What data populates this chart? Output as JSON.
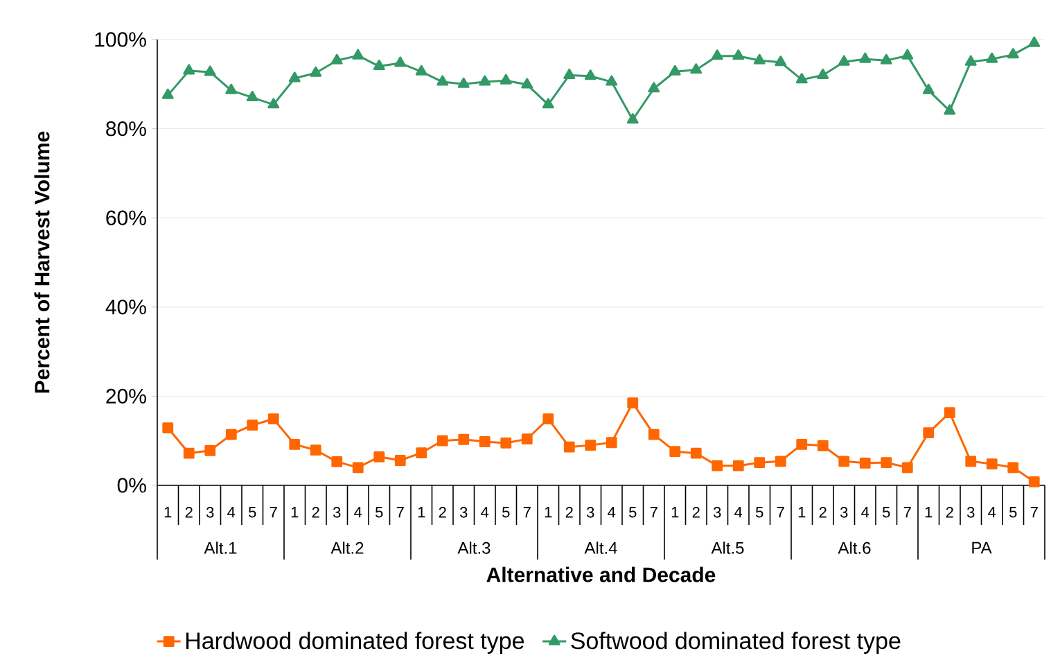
{
  "chart_data": {
    "type": "line",
    "xlabel": "Alternative and Decade",
    "ylabel": "Percent of Harvest Volume",
    "categories": [
      "1",
      "2",
      "3",
      "4",
      "5",
      "7",
      "1",
      "2",
      "3",
      "4",
      "5",
      "7",
      "1",
      "2",
      "3",
      "4",
      "5",
      "7",
      "1",
      "2",
      "3",
      "4",
      "5",
      "7",
      "1",
      "2",
      "3",
      "4",
      "5",
      "7",
      "1",
      "2",
      "3",
      "4",
      "5",
      "7",
      "1",
      "2",
      "3",
      "4",
      "5",
      "7"
    ],
    "annotations": [
      "Alt.1",
      "Alt.2",
      "Alt.3",
      "Alt.4",
      "Alt.5",
      "Alt.6",
      "PA"
    ],
    "series": [
      {
        "name": "Hardwood dominated forest type",
        "color": "#ff6600",
        "marker": "square",
        "values": [
          12.9,
          7.2,
          7.8,
          11.4,
          13.5,
          14.9,
          9.2,
          7.9,
          5.3,
          4.0,
          6.4,
          5.6,
          7.3,
          10.0,
          10.3,
          9.8,
          9.5,
          10.4,
          14.9,
          8.6,
          9.0,
          9.6,
          18.5,
          11.4,
          7.6,
          7.2,
          4.4,
          4.4,
          5.1,
          5.4,
          9.2,
          8.9,
          5.4,
          5.0,
          5.1,
          4.0,
          11.8,
          16.3,
          5.4,
          4.8,
          4.0,
          0.8
        ]
      },
      {
        "name": "Softwood dominated forest type",
        "color": "#339966",
        "marker": "triangle",
        "values": [
          87.5,
          93.0,
          92.7,
          88.6,
          87.0,
          85.4,
          91.3,
          92.5,
          95.3,
          96.4,
          94.0,
          94.7,
          92.8,
          90.5,
          90.0,
          90.5,
          90.8,
          89.9,
          85.4,
          92.0,
          91.8,
          90.5,
          82.0,
          89.0,
          92.8,
          93.2,
          96.3,
          96.3,
          95.3,
          94.9,
          91.0,
          92.0,
          95.0,
          95.6,
          95.3,
          96.4,
          88.6,
          84.0,
          95.0,
          95.6,
          96.6,
          99.2
        ]
      }
    ],
    "ylim": [
      0,
      100
    ],
    "yticks": [
      {
        "value": 0,
        "label": "0%"
      },
      {
        "value": 20,
        "label": "20%"
      },
      {
        "value": 40,
        "label": "40%"
      },
      {
        "value": 60,
        "label": "60%"
      },
      {
        "value": 80,
        "label": "80%"
      },
      {
        "value": 100,
        "label": "100%"
      }
    ],
    "grid": "y",
    "legend": "bottom",
    "line_style": "solid"
  }
}
